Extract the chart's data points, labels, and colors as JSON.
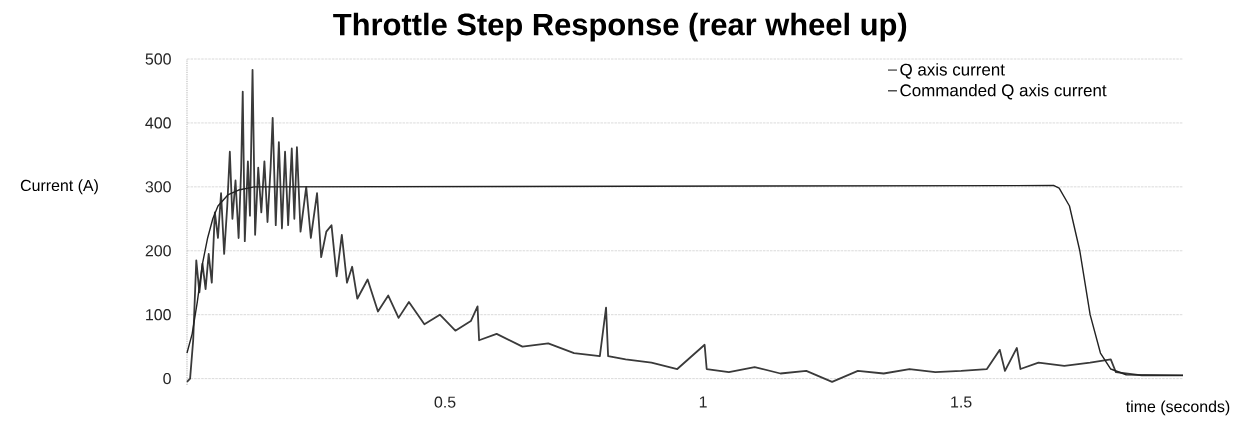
{
  "chart_data": {
    "type": "line",
    "title": "Throttle Step Response (rear wheel up)",
    "xlabel": "time (seconds)",
    "ylabel": "Current (A)",
    "xlim": [
      0,
      1.93
    ],
    "ylim": [
      -10,
      500
    ],
    "xticks": [
      0.5,
      1,
      1.5
    ],
    "yticks": [
      0,
      100,
      200,
      300,
      400,
      500
    ],
    "grid": "y",
    "legend": "top right",
    "series": [
      {
        "name": "Q axis current",
        "color": "#3a3a3a",
        "x": [
          0,
          0.006,
          0.012,
          0.018,
          0.024,
          0.03,
          0.036,
          0.042,
          0.048,
          0.054,
          0.06,
          0.066,
          0.072,
          0.078,
          0.083,
          0.088,
          0.094,
          0.1,
          0.105,
          0.108,
          0.112,
          0.118,
          0.122,
          0.127,
          0.132,
          0.138,
          0.144,
          0.15,
          0.156,
          0.162,
          0.166,
          0.172,
          0.178,
          0.184,
          0.19,
          0.196,
          0.203,
          0.208,
          0.213,
          0.22,
          0.231,
          0.24,
          0.252,
          0.26,
          0.27,
          0.28,
          0.29,
          0.3,
          0.31,
          0.32,
          0.33,
          0.35,
          0.37,
          0.39,
          0.41,
          0.43,
          0.46,
          0.49,
          0.52,
          0.55,
          0.563,
          0.566,
          0.6,
          0.65,
          0.7,
          0.75,
          0.8,
          0.812,
          0.816,
          0.85,
          0.9,
          0.95,
          1.003,
          1.007,
          1.05,
          1.1,
          1.15,
          1.2,
          1.25,
          1.3,
          1.35,
          1.4,
          1.45,
          1.5,
          1.55,
          1.575,
          1.585,
          1.608,
          1.615,
          1.65,
          1.7,
          1.75,
          1.79,
          1.8,
          1.85,
          1.93
        ],
        "values": [
          -5,
          0,
          60,
          185,
          135,
          180,
          140,
          195,
          150,
          260,
          220,
          290,
          195,
          270,
          355,
          250,
          310,
          220,
          330,
          449,
          215,
          340,
          255,
          483,
          225,
          330,
          260,
          340,
          245,
          330,
          408,
          240,
          370,
          235,
          355,
          240,
          360,
          250,
          362,
          230,
          300,
          220,
          290,
          190,
          230,
          240,
          160,
          225,
          150,
          175,
          125,
          155,
          105,
          130,
          95,
          120,
          85,
          100,
          75,
          90,
          113,
          60,
          70,
          50,
          55,
          40,
          35,
          111,
          35,
          30,
          25,
          15,
          53,
          15,
          10,
          18,
          8,
          12,
          -5,
          12,
          8,
          15,
          10,
          12,
          15,
          45,
          12,
          48,
          15,
          25,
          20,
          25,
          30,
          10,
          5,
          5
        ]
      },
      {
        "name": "Commanded Q axis current",
        "color": "#222222",
        "x": [
          0,
          0.01,
          0.02,
          0.03,
          0.04,
          0.05,
          0.06,
          0.08,
          0.1,
          0.13,
          1.68,
          1.69,
          1.71,
          1.73,
          1.75,
          1.77,
          1.79,
          1.82,
          1.93
        ],
        "values": [
          40,
          70,
          120,
          180,
          220,
          250,
          270,
          288,
          295,
          300,
          302,
          298,
          270,
          200,
          100,
          40,
          15,
          6,
          5
        ]
      }
    ]
  }
}
